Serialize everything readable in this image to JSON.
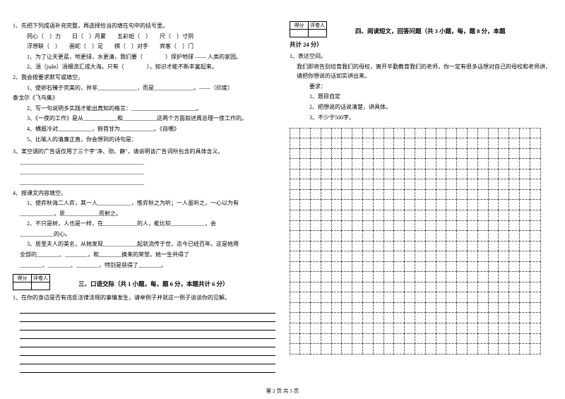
{
  "left": {
    "q1": {
      "num": "1、先把下列成语补充完整，再选择恰当的填在句中的括号里。",
      "row1": "同心（　）力　　日（　）月累　　五彩斑（　）　　尺（　）寸阴",
      "row2": "浮想联（　）　　画蛇（　）足　　棋（　）对手　　宾客（　）门",
      "s1": "1、为了让天更蓝，地更绿，水更清，我们要（　　　　）保护地球 —— 人类的家园。",
      "s2": "2、涓（juān）涓细流汇成大海。只有（　　　　），知识才能不断丰富起来。"
    },
    "q2": {
      "num": "2、我会按要求默写或填空。",
      "s1a": "1、使卵石臻于完美的，并非______________，而是______________。——（印度）",
      "s1b": "泰戈尔《飞鸟集》",
      "s2": "2、写一句说明多实践才能出真知的格言：_______________________。",
      "s3": "3、《一夜的工作》是从____________和____________这两个方面叙述周总理一夜工作的。",
      "s4": "4、横眉冷对____________，俯首甘为____________。《自嘲》",
      "s5": "5、比喻人的清廉正直，你会想到的诗句是："
    },
    "q3": {
      "num": "3、某空调的广告语仅用了三个字\"净、劲、静\"，请说明该广告词所包含的具体含义。",
      "blank1": "____________________________________________",
      "blank2": "____________________________________________",
      "blank3": "____________________________________________"
    },
    "q4": {
      "num": "4、按课文内容填空。",
      "s1a": "1、使弈秋诲二人弈，其一人____________，惟弈秋之为听；一人虽听之，一心以为有",
      "s1b": "____________，思____________而射之。",
      "s2a": "2、不只是树，人也是一样，在____________的人，能比较____________，会",
      "s2b": "____________的心。",
      "s3a": "3、居里夫人的美名，从她发现____________起就流传于世，迄今已经百年。这是她用",
      "s3b": "全部的________、________，和________换来的荣誉。她一生共得了",
      "s3c": "________、________、________，特别是获得了________。"
    },
    "scoreHeader": {
      "c1": "得分",
      "c2": "评卷人"
    },
    "section3": {
      "title": "三、口语交际（共 1 小题，每，题 6 分，本题共计 6 分）",
      "q1": "1、在你的身边是否有违反法律法规的事情发生，请举例子并就这一例子谈谈你的见解。"
    }
  },
  "right": {
    "scoreHeader": {
      "c1": "得分",
      "c2": "评卷人"
    },
    "section4": {
      "title": "四、阅读短文，回答问题（共 3 小题，每，题 8 分，本题",
      "titleBelow": "共计 24 分）"
    },
    "q1": {
      "num": "1、表达空间。",
      "p1": "我们即将告别培育我们的母校，离开辛勤教育我们的老师，你一定有很多话想对自己的母校和老师讲，请把你想说的话如实讲出来。",
      "req": "要求：",
      "r1": "1、题目自定",
      "r2": "2、把想说的话说清楚，讲具体。",
      "r3": "3、不少于500字。"
    }
  },
  "footer": "第 2 页 共 5 页",
  "grid": {
    "cols": 24,
    "rows": 22
  }
}
